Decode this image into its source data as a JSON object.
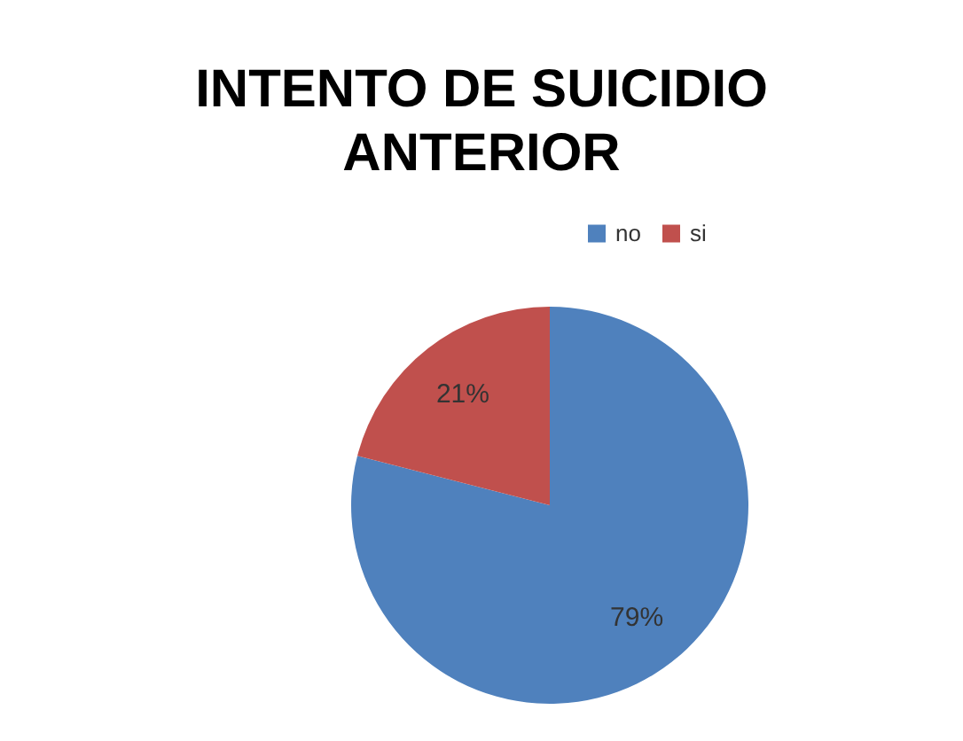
{
  "chart_data": {
    "type": "pie",
    "title": "INTENTO DE SUICIDIO ANTERIOR",
    "categories": [
      "no",
      "si"
    ],
    "values": [
      79,
      21
    ],
    "colors": [
      "#4f81bd",
      "#c0504d"
    ],
    "value_labels": [
      "79%",
      "21%"
    ],
    "legend": "top right"
  }
}
